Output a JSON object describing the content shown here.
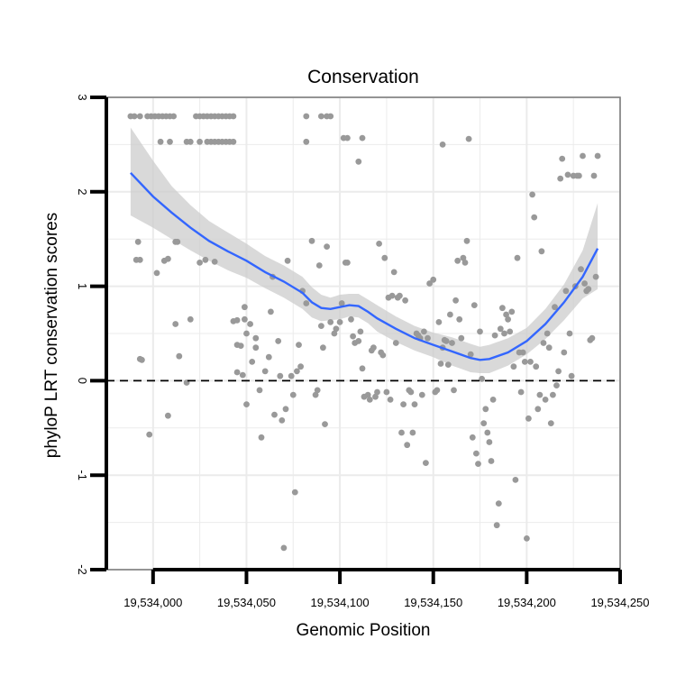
{
  "chart_data": {
    "type": "scatter",
    "title": "Conservation",
    "xlabel": "Genomic Position",
    "ylabel": "phyloP LRT conservation scores",
    "xlim": [
      19533975,
      19534250
    ],
    "ylim": [
      -2,
      3
    ],
    "x_ticks": [
      19534000,
      19534050,
      19534100,
      19534150,
      19534200,
      19534250
    ],
    "x_tick_labels": [
      "19,534,000",
      "19,534,050",
      "19,534,100",
      "19,534,150",
      "19,534,200",
      "19,534,250"
    ],
    "y_ticks": [
      -2,
      -1,
      0,
      1,
      2,
      3
    ],
    "y_tick_labels": [
      "-2",
      "-1",
      "0",
      "1",
      "2",
      "3"
    ],
    "grid": true,
    "reference_line": {
      "y": 0,
      "style": "dashed",
      "color": "#000000"
    },
    "colors": {
      "points": "#999999",
      "smooth": "#3366ff",
      "ribbon": "#cccccc",
      "grid": "#ebebeb",
      "panel_border": "#7f7f7f"
    },
    "series": [
      {
        "name": "phyloP scores",
        "kind": "points",
        "points": [
          [
            19533988,
            2.8
          ],
          [
            19533990,
            2.8
          ],
          [
            19533993,
            2.8
          ],
          [
            19533997,
            2.8
          ],
          [
            19533999,
            2.8
          ],
          [
            19534001,
            2.8
          ],
          [
            19534003,
            2.8
          ],
          [
            19534005,
            2.8
          ],
          [
            19534007,
            2.8
          ],
          [
            19534009,
            2.8
          ],
          [
            19534011,
            2.8
          ],
          [
            19534023,
            2.8
          ],
          [
            19534025,
            2.8
          ],
          [
            19534027,
            2.8
          ],
          [
            19534029,
            2.8
          ],
          [
            19534031,
            2.8
          ],
          [
            19534033,
            2.8
          ],
          [
            19534035,
            2.8
          ],
          [
            19534037,
            2.8
          ],
          [
            19534039,
            2.8
          ],
          [
            19534041,
            2.8
          ],
          [
            19534043,
            2.8
          ],
          [
            19534082,
            2.8
          ],
          [
            19534090,
            2.8
          ],
          [
            19534093,
            2.8
          ],
          [
            19534095,
            2.8
          ],
          [
            19534004,
            2.53
          ],
          [
            19534009,
            2.53
          ],
          [
            19534018,
            2.53
          ],
          [
            19534020,
            2.53
          ],
          [
            19534025,
            2.53
          ],
          [
            19534029,
            2.53
          ],
          [
            19534031,
            2.53
          ],
          [
            19534033,
            2.53
          ],
          [
            19534035,
            2.53
          ],
          [
            19534037,
            2.53
          ],
          [
            19534039,
            2.53
          ],
          [
            19534041,
            2.53
          ],
          [
            19534043,
            2.53
          ],
          [
            19534082,
            2.53
          ],
          [
            19534102,
            2.57
          ],
          [
            19534104,
            2.57
          ],
          [
            19534112,
            2.57
          ],
          [
            19534110,
            2.32
          ],
          [
            19534155,
            2.5
          ],
          [
            19534169,
            2.56
          ],
          [
            19533991,
            1.28
          ],
          [
            19533993,
            1.28
          ],
          [
            19533992,
            1.47
          ],
          [
            19533993,
            0.23
          ],
          [
            19533994,
            0.22
          ],
          [
            19533998,
            -0.57
          ],
          [
            19534002,
            1.14
          ],
          [
            19534006,
            1.27
          ],
          [
            19534008,
            1.29
          ],
          [
            19534008,
            -0.37
          ],
          [
            19534012,
            1.47
          ],
          [
            19534013,
            1.47
          ],
          [
            19534014,
            0.26
          ],
          [
            19534018,
            -0.02
          ],
          [
            19534012,
            0.6
          ],
          [
            19534020,
            0.65
          ],
          [
            19534025,
            1.25
          ],
          [
            19534028,
            1.28
          ],
          [
            19534033,
            1.26
          ],
          [
            19534043,
            0.63
          ],
          [
            19534045,
            0.64
          ],
          [
            19534045,
            0.38
          ],
          [
            19534045,
            0.09
          ],
          [
            19534047,
            0.37
          ],
          [
            19534048,
            0.06
          ],
          [
            19534049,
            0.78
          ],
          [
            19534049,
            0.65
          ],
          [
            19534050,
            0.5
          ],
          [
            19534052,
            0.6
          ],
          [
            19534053,
            0.2
          ],
          [
            19534055,
            0.45
          ],
          [
            19534050,
            -0.25
          ],
          [
            19534055,
            0.35
          ],
          [
            19534057,
            -0.1
          ],
          [
            19534058,
            -0.6
          ],
          [
            19534060,
            0.1
          ],
          [
            19534062,
            0.25
          ],
          [
            19534063,
            0.73
          ],
          [
            19534064,
            1.1
          ],
          [
            19534065,
            -0.36
          ],
          [
            19534067,
            0.42
          ],
          [
            19534068,
            0.05
          ],
          [
            19534069,
            -0.42
          ],
          [
            19534070,
            -1.77
          ],
          [
            19534071,
            -0.3
          ],
          [
            19534072,
            1.27
          ],
          [
            19534074,
            0.05
          ],
          [
            19534075,
            -0.15
          ],
          [
            19534076,
            -1.18
          ],
          [
            19534077,
            0.1
          ],
          [
            19534078,
            0.38
          ],
          [
            19534079,
            0.15
          ],
          [
            19534080,
            0.95
          ],
          [
            19534082,
            0.82
          ],
          [
            19534085,
            1.48
          ],
          [
            19534087,
            -0.15
          ],
          [
            19534088,
            -0.1
          ],
          [
            19534089,
            1.22
          ],
          [
            19534090,
            0.58
          ],
          [
            19534091,
            0.35
          ],
          [
            19534092,
            -0.46
          ],
          [
            19534093,
            1.42
          ],
          [
            19534095,
            0.62
          ],
          [
            19534097,
            0.5
          ],
          [
            19534098,
            0.55
          ],
          [
            19534100,
            0.62
          ],
          [
            19534101,
            0.82
          ],
          [
            19534103,
            1.25
          ],
          [
            19534104,
            1.25
          ],
          [
            19534106,
            0.65
          ],
          [
            19534107,
            0.47
          ],
          [
            19534108,
            0.4
          ],
          [
            19534110,
            0.42
          ],
          [
            19534111,
            0.52
          ],
          [
            19534112,
            0.13
          ],
          [
            19534113,
            -0.17
          ],
          [
            19534115,
            -0.15
          ],
          [
            19534116,
            -0.2
          ],
          [
            19534117,
            0.32
          ],
          [
            19534118,
            0.35
          ],
          [
            19534119,
            -0.17
          ],
          [
            19534120,
            -0.12
          ],
          [
            19534121,
            1.45
          ],
          [
            19534122,
            0.3
          ],
          [
            19534123,
            0.27
          ],
          [
            19534124,
            1.3
          ],
          [
            19534125,
            -0.12
          ],
          [
            19534126,
            0.88
          ],
          [
            19534127,
            -0.2
          ],
          [
            19534128,
            0.9
          ],
          [
            19534129,
            1.15
          ],
          [
            19534130,
            0.4
          ],
          [
            19534131,
            0.88
          ],
          [
            19534132,
            0.9
          ],
          [
            19534133,
            -0.55
          ],
          [
            19534134,
            -0.25
          ],
          [
            19534135,
            0.85
          ],
          [
            19534136,
            -0.68
          ],
          [
            19534137,
            -0.1
          ],
          [
            19534138,
            -0.12
          ],
          [
            19534139,
            -0.55
          ],
          [
            19534140,
            -0.25
          ],
          [
            19534141,
            0.5
          ],
          [
            19534142,
            0.48
          ],
          [
            19534143,
            0.45
          ],
          [
            19534144,
            -0.15
          ],
          [
            19534145,
            0.52
          ],
          [
            19534146,
            -0.87
          ],
          [
            19534147,
            0.45
          ],
          [
            19534148,
            1.03
          ],
          [
            19534150,
            1.07
          ],
          [
            19534151,
            -0.12
          ],
          [
            19534152,
            -0.1
          ],
          [
            19534153,
            0.62
          ],
          [
            19534154,
            0.18
          ],
          [
            19534155,
            0.35
          ],
          [
            19534156,
            0.43
          ],
          [
            19534157,
            0.42
          ],
          [
            19534158,
            0.17
          ],
          [
            19534159,
            0.7
          ],
          [
            19534160,
            0.4
          ],
          [
            19534161,
            -0.1
          ],
          [
            19534162,
            0.85
          ],
          [
            19534163,
            1.27
          ],
          [
            19534164,
            0.65
          ],
          [
            19534165,
            0.45
          ],
          [
            19534166,
            1.3
          ],
          [
            19534167,
            1.25
          ],
          [
            19534168,
            1.48
          ],
          [
            19534170,
            0.28
          ],
          [
            19534171,
            -0.6
          ],
          [
            19534172,
            0.8
          ],
          [
            19534173,
            -0.77
          ],
          [
            19534174,
            -0.88
          ],
          [
            19534175,
            0.52
          ],
          [
            19534176,
            0.02
          ],
          [
            19534177,
            -0.45
          ],
          [
            19534178,
            -0.3
          ],
          [
            19534179,
            -0.55
          ],
          [
            19534180,
            -0.65
          ],
          [
            19534181,
            -0.85
          ],
          [
            19534182,
            -0.2
          ],
          [
            19534183,
            0.48
          ],
          [
            19534184,
            -1.53
          ],
          [
            19534185,
            -1.3
          ],
          [
            19534186,
            0.55
          ],
          [
            19534187,
            0.77
          ],
          [
            19534188,
            0.5
          ],
          [
            19534189,
            0.7
          ],
          [
            19534190,
            0.65
          ],
          [
            19534191,
            0.52
          ],
          [
            19534192,
            0.73
          ],
          [
            19534193,
            0.15
          ],
          [
            19534194,
            -1.05
          ],
          [
            19534195,
            1.3
          ],
          [
            19534196,
            0.3
          ],
          [
            19534197,
            -0.12
          ],
          [
            19534198,
            0.3
          ],
          [
            19534199,
            0.2
          ],
          [
            19534200,
            -1.67
          ],
          [
            19534201,
            -0.4
          ],
          [
            19534202,
            0.2
          ],
          [
            19534203,
            1.97
          ],
          [
            19534204,
            1.73
          ],
          [
            19534205,
            0.15
          ],
          [
            19534206,
            -0.3
          ],
          [
            19534207,
            -0.15
          ],
          [
            19534208,
            1.37
          ],
          [
            19534209,
            0.4
          ],
          [
            19534210,
            -0.2
          ],
          [
            19534211,
            0.5
          ],
          [
            19534212,
            0.35
          ],
          [
            19534213,
            -0.45
          ],
          [
            19534214,
            -0.15
          ],
          [
            19534215,
            0.78
          ],
          [
            19534216,
            -0.05
          ],
          [
            19534217,
            0.1
          ],
          [
            19534218,
            2.14
          ],
          [
            19534219,
            2.35
          ],
          [
            19534220,
            0.3
          ],
          [
            19534221,
            0.95
          ],
          [
            19534222,
            2.18
          ],
          [
            19534223,
            0.5
          ],
          [
            19534224,
            0.05
          ],
          [
            19534225,
            2.17
          ],
          [
            19534226,
            1.0
          ],
          [
            19534227,
            2.17
          ],
          [
            19534228,
            2.17
          ],
          [
            19534229,
            1.18
          ],
          [
            19534230,
            2.38
          ],
          [
            19534231,
            1.03
          ],
          [
            19534232,
            0.95
          ],
          [
            19534233,
            0.97
          ],
          [
            19534234,
            0.43
          ],
          [
            19534235,
            0.45
          ],
          [
            19534236,
            2.17
          ],
          [
            19534237,
            1.1
          ],
          [
            19534238,
            2.38
          ]
        ]
      },
      {
        "name": "loess fit",
        "kind": "smooth",
        "x": [
          19533988,
          19534000,
          19534010,
          19534020,
          19534030,
          19534040,
          19534050,
          19534060,
          19534070,
          19534080,
          19534085,
          19534090,
          19534095,
          19534100,
          19534105,
          19534110,
          19534115,
          19534120,
          19534130,
          19534140,
          19534150,
          19534160,
          19534170,
          19534175,
          19534180,
          19534190,
          19534200,
          19534210,
          19534220,
          19534230,
          19534238
        ],
        "y": [
          2.2,
          1.95,
          1.78,
          1.62,
          1.48,
          1.37,
          1.27,
          1.15,
          1.05,
          0.93,
          0.83,
          0.77,
          0.76,
          0.78,
          0.8,
          0.79,
          0.73,
          0.66,
          0.55,
          0.45,
          0.38,
          0.31,
          0.24,
          0.22,
          0.23,
          0.3,
          0.42,
          0.6,
          0.83,
          1.1,
          1.4
        ],
        "lower": [
          1.75,
          1.62,
          1.5,
          1.38,
          1.27,
          1.17,
          1.09,
          0.98,
          0.88,
          0.76,
          0.67,
          0.63,
          0.64,
          0.65,
          0.68,
          0.67,
          0.61,
          0.52,
          0.41,
          0.32,
          0.25,
          0.16,
          0.09,
          0.08,
          0.08,
          0.16,
          0.28,
          0.44,
          0.64,
          0.87,
          0.97
        ],
        "upper": [
          2.68,
          2.33,
          2.06,
          1.86,
          1.69,
          1.57,
          1.45,
          1.32,
          1.22,
          1.1,
          0.99,
          0.91,
          0.88,
          0.91,
          0.92,
          0.92,
          0.86,
          0.8,
          0.68,
          0.58,
          0.51,
          0.46,
          0.39,
          0.36,
          0.38,
          0.45,
          0.56,
          0.76,
          1.02,
          1.38,
          1.88
        ]
      }
    ]
  }
}
